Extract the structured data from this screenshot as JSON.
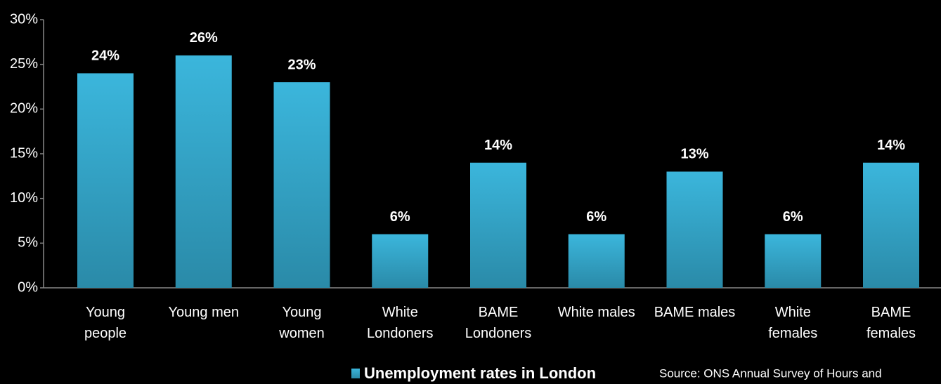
{
  "chart_data": {
    "type": "bar",
    "categories": [
      "Young\npeople",
      "Young men",
      "Young\nwomen",
      "White\nLondoners",
      "BAME\nLondoners",
      "White males",
      "BAME males",
      "White\nfemales",
      "BAME\nfemales"
    ],
    "values": [
      24,
      26,
      23,
      6,
      14,
      6,
      13,
      6,
      14
    ],
    "value_labels": [
      "24%",
      "26%",
      "23%",
      "6%",
      "14%",
      "6%",
      "13%",
      "6%",
      "14%"
    ],
    "color": "#3bb6dc",
    "series_name": "Unemployment rates in London",
    "source": "Source: ONS Annual Survey of Hours and",
    "ylim": [
      0,
      30
    ],
    "yticks": [
      {
        "value": 0,
        "label": "0%"
      },
      {
        "value": 5,
        "label": "5%"
      },
      {
        "value": 10,
        "label": "10%"
      },
      {
        "value": 15,
        "label": "15%"
      },
      {
        "value": 20,
        "label": "20%"
      },
      {
        "value": 25,
        "label": "25%"
      },
      {
        "value": 30,
        "label": "30%"
      }
    ],
    "grid": false
  }
}
